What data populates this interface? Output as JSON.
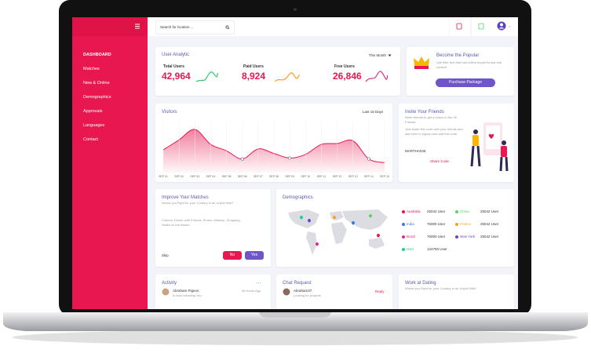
{
  "sidebar": {
    "menu": [
      "DASHBOARD",
      "Matches",
      "New & Online",
      "Demographics",
      "Approvals",
      "Languages",
      "Contact"
    ]
  },
  "topbar": {
    "search": "Search for location ..."
  },
  "user_analytic": {
    "title": "User Analytic",
    "period": "This Month",
    "stats": [
      {
        "label": "Total Users",
        "value": "42,964",
        "color": "#e8174f"
      },
      {
        "label": "Paid Users",
        "value": "8,924",
        "color": "#e8174f"
      },
      {
        "label": "Free Users",
        "value": "26,846",
        "color": "#e8174f"
      }
    ]
  },
  "popular": {
    "title": "Become the Popular",
    "text": "Use filter text that had edited length format real content",
    "button": "Purchase Package"
  },
  "chart_data": {
    "type": "area",
    "title": "Visitors",
    "period": "Last 15 Days",
    "color": "#e8174f",
    "categories": [
      "SEP 01",
      "SEP 02",
      "SEP 03",
      "SEP 04",
      "SEP 05",
      "SEP 06",
      "SEP 07",
      "SEP 08",
      "SEP 09",
      "SEP 10",
      "SEP 11",
      "SEP 12",
      "SEP 13",
      "SEP 14",
      "SEP 15"
    ],
    "values": [
      50,
      72,
      95,
      62,
      48,
      30,
      52,
      42,
      32,
      40,
      62,
      64,
      70,
      30,
      22
    ],
    "ylim": [
      0,
      100
    ]
  },
  "invite": {
    "title": "Invite Your Friends",
    "subtitle": "Refer friends to get a bonus in the 35 Friends",
    "text": "Just share this code with your friends and ask them to signup and add this code",
    "code": "MARTHA045",
    "button": "Share Code"
  },
  "improve": {
    "title": "Improve Your Matches",
    "question": "Would you Fight for your Country in an Unjust War?",
    "interests": "Cinema, Dinner with Friends, Shoes, Makeup, Shopping, Walks on the Beach",
    "skip": "Skip",
    "no": "No",
    "yes": "Yes"
  },
  "demographics": {
    "title": "Demographics",
    "items": [
      {
        "name": "Australia",
        "users": "25042 User",
        "color": "#e8174f"
      },
      {
        "name": "China",
        "users": "25042 User",
        "color": "#4cd964"
      },
      {
        "name": "India",
        "users": "75000 User",
        "color": "#3a7bd5"
      },
      {
        "name": "France",
        "users": "25042 User",
        "color": "#ff9f1c"
      },
      {
        "name": "Brazil",
        "users": "75000 User",
        "color": "#d63384"
      },
      {
        "name": "New York",
        "users": "25042 User",
        "color": "#6f42c1"
      },
      {
        "name": "USA",
        "users": "124750 User",
        "color": "#20c997"
      }
    ]
  },
  "activity": {
    "title": "Activity",
    "more": "...",
    "name": "Abraham Pigeon",
    "time": "08 Hours Ago",
    "text": "Is Now following You."
  },
  "chat": {
    "title": "Chat Request",
    "name": "Abraham37",
    "text": "Looking for projects",
    "button": "Reply"
  },
  "work": {
    "title": "Work at Dating",
    "text": "Would you Fight for your Country in an Unjust War?"
  }
}
